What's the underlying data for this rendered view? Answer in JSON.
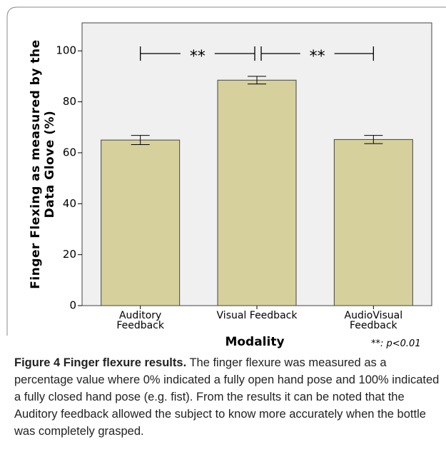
{
  "chart_data": {
    "type": "bar",
    "categories": [
      "Auditory Feedback",
      "Visual Feedback",
      "AudioVisual Feedback"
    ],
    "values": [
      65,
      88.5,
      65.2
    ],
    "errors": [
      1.8,
      1.5,
      1.6
    ],
    "color": "#d6d09c",
    "ylim": [
      0,
      111
    ],
    "yticks": [
      0,
      20,
      40,
      60,
      80,
      100
    ],
    "y_label": "Finger Flexing as measured by the Data Glove (%)",
    "x_label": "Modality",
    "comparisons": [
      {
        "label": "**",
        "pair": [
          0,
          1
        ]
      },
      {
        "label": "**",
        "pair": [
          1,
          2
        ]
      }
    ],
    "annotation": "**: p<0.01"
  },
  "caption": {
    "label": "Figure 4 Finger flexure results.",
    "text": "The finger flexure was measured as a percentage value where 0% indicated a fully open hand pose and 100% indicated a fully closed hand pose (e.g. fist). From the results it can be noted that the Auditory feedback allowed the subject to know more accurately when the bottle was completely grasped."
  }
}
